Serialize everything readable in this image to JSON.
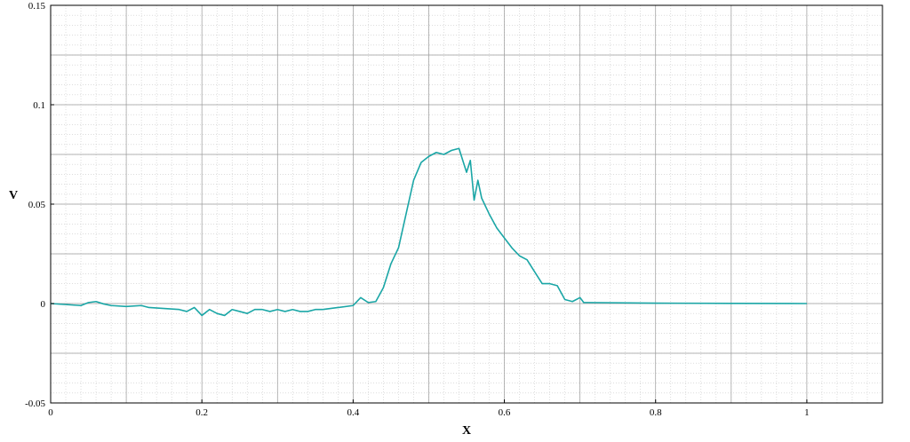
{
  "chart_data": {
    "type": "line",
    "title": "",
    "xlabel": "X",
    "ylabel": "V",
    "xlim": [
      0,
      1.1
    ],
    "ylim": [
      -0.05,
      0.15
    ],
    "x_ticks": [
      0,
      0.2,
      0.4,
      0.6,
      0.8,
      1
    ],
    "x_tick_labels": [
      "0",
      "0.2",
      "0.4",
      "0.6",
      "0.8",
      "1"
    ],
    "y_ticks": [
      -0.05,
      0,
      0.05,
      0.1,
      0.15
    ],
    "y_tick_labels": [
      "-0.05",
      "0",
      "0.05",
      "0.1",
      "0.15"
    ],
    "grid": true,
    "minor_grid": true,
    "line_color": "#1aa6a6",
    "series": [
      {
        "x": [
          0,
          0.02,
          0.04,
          0.05,
          0.06,
          0.07,
          0.08,
          0.1,
          0.12,
          0.13,
          0.15,
          0.17,
          0.18,
          0.19,
          0.2,
          0.21,
          0.22,
          0.23,
          0.24,
          0.25,
          0.26,
          0.27,
          0.28,
          0.29,
          0.3,
          0.31,
          0.32,
          0.33,
          0.34,
          0.35,
          0.36,
          0.38,
          0.4,
          0.41,
          0.42,
          0.43,
          0.44,
          0.45,
          0.46,
          0.47,
          0.48,
          0.49,
          0.5,
          0.51,
          0.52,
          0.53,
          0.54,
          0.545,
          0.55,
          0.555,
          0.56,
          0.565,
          0.57,
          0.575,
          0.58,
          0.59,
          0.6,
          0.61,
          0.62,
          0.63,
          0.64,
          0.65,
          0.66,
          0.67,
          0.68,
          0.69,
          0.7,
          0.705,
          0.71,
          0.8,
          0.9,
          1.0
        ],
        "y": [
          0,
          -0.0005,
          -0.001,
          0.0005,
          0.001,
          -0.0002,
          -0.001,
          -0.0015,
          -0.001,
          -0.002,
          -0.0025,
          -0.003,
          -0.004,
          -0.002,
          -0.006,
          -0.003,
          -0.005,
          -0.006,
          -0.003,
          -0.004,
          -0.005,
          -0.003,
          -0.003,
          -0.004,
          -0.003,
          -0.004,
          -0.003,
          -0.004,
          -0.004,
          -0.003,
          -0.003,
          -0.002,
          -0.001,
          0.003,
          0.0005,
          0.001,
          0.008,
          0.02,
          0.028,
          0.045,
          0.062,
          0.071,
          0.074,
          0.076,
          0.075,
          0.077,
          0.078,
          0.072,
          0.066,
          0.072,
          0.052,
          0.062,
          0.053,
          0.049,
          0.045,
          0.038,
          0.033,
          0.028,
          0.024,
          0.022,
          0.016,
          0.01,
          0.01,
          0.009,
          0.002,
          0.001,
          0.003,
          0.0005,
          0.0005,
          0.0002,
          0.0001,
          0.0
        ]
      }
    ]
  }
}
